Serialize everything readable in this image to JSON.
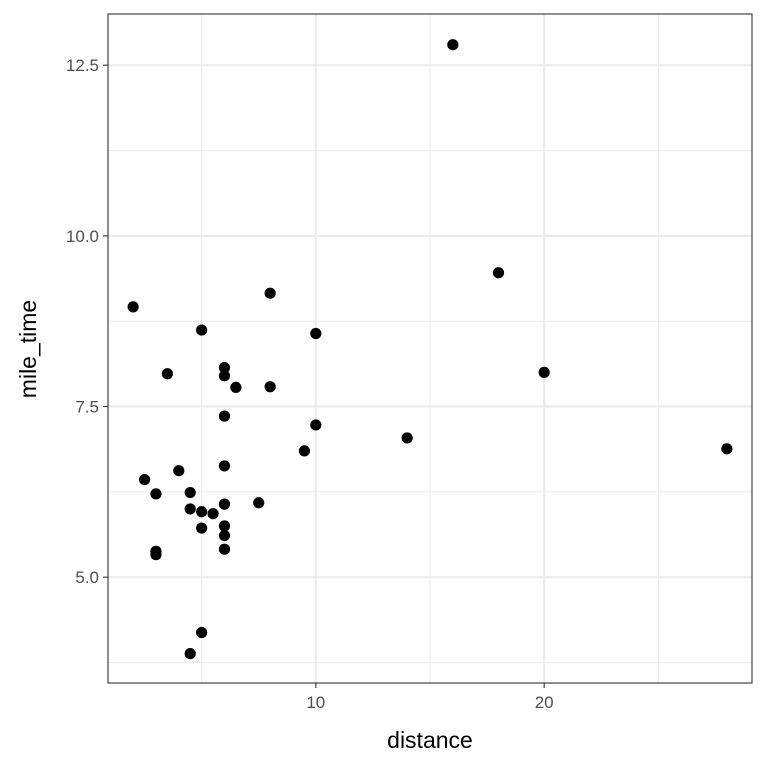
{
  "chart_data": {
    "type": "scatter",
    "xlabel": "distance",
    "ylabel": "mile_time",
    "xlim": [
      0.9,
      29.1
    ],
    "ylim": [
      3.45,
      13.25
    ],
    "x_ticks": [
      10,
      20
    ],
    "x_tick_labels": [
      "10",
      "20"
    ],
    "x_minor_ticks": [
      5,
      15,
      25
    ],
    "y_ticks": [
      5.0,
      7.5,
      10.0,
      12.5
    ],
    "y_tick_labels": [
      "5.0",
      "7.5",
      "10.0",
      "12.5"
    ],
    "y_minor_ticks": [
      3.75,
      6.25,
      8.75,
      11.25
    ],
    "grid": true,
    "theme": "bw",
    "point_color": "#000000",
    "grid_color": "#ebebeb",
    "series": [
      {
        "points": [
          {
            "x": 2,
            "y": 8.96
          },
          {
            "x": 2.5,
            "y": 6.43
          },
          {
            "x": 3,
            "y": 6.22
          },
          {
            "x": 3,
            "y": 5.38
          },
          {
            "x": 3,
            "y": 5.33
          },
          {
            "x": 3.5,
            "y": 7.98
          },
          {
            "x": 4,
            "y": 6.56
          },
          {
            "x": 4.5,
            "y": 6.24
          },
          {
            "x": 4.5,
            "y": 6.0
          },
          {
            "x": 4.5,
            "y": 3.88
          },
          {
            "x": 5,
            "y": 8.62
          },
          {
            "x": 5,
            "y": 5.96
          },
          {
            "x": 5,
            "y": 5.72
          },
          {
            "x": 5,
            "y": 4.19
          },
          {
            "x": 5.5,
            "y": 5.93
          },
          {
            "x": 6,
            "y": 8.07
          },
          {
            "x": 6,
            "y": 7.95
          },
          {
            "x": 6,
            "y": 7.36
          },
          {
            "x": 6,
            "y": 6.63
          },
          {
            "x": 6,
            "y": 6.07
          },
          {
            "x": 6,
            "y": 5.75
          },
          {
            "x": 6,
            "y": 5.61
          },
          {
            "x": 6,
            "y": 5.41
          },
          {
            "x": 6.5,
            "y": 7.78
          },
          {
            "x": 7.5,
            "y": 6.09
          },
          {
            "x": 8,
            "y": 9.16
          },
          {
            "x": 8,
            "y": 7.79
          },
          {
            "x": 9.5,
            "y": 6.85
          },
          {
            "x": 10,
            "y": 8.57
          },
          {
            "x": 10,
            "y": 7.23
          },
          {
            "x": 14,
            "y": 7.04
          },
          {
            "x": 16,
            "y": 12.8
          },
          {
            "x": 18,
            "y": 9.46
          },
          {
            "x": 20,
            "y": 8.0
          },
          {
            "x": 28,
            "y": 6.88
          }
        ]
      }
    ]
  }
}
